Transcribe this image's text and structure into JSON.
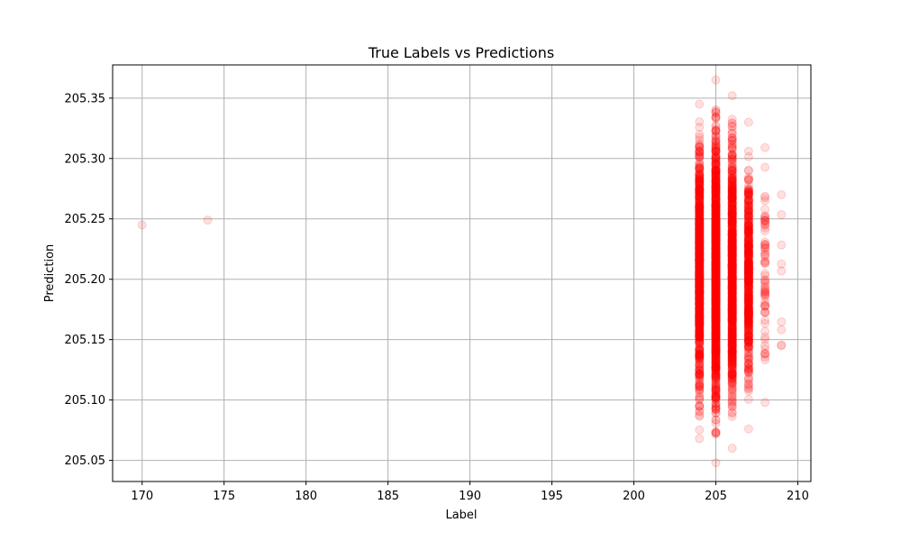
{
  "chart_data": {
    "type": "scatter",
    "title": "True Labels vs Predictions",
    "xlabel": "Label",
    "ylabel": "Prediction",
    "xlim": [
      168.2,
      210.8
    ],
    "ylim": [
      205.0325,
      205.3775
    ],
    "xticks": [
      170,
      175,
      180,
      185,
      190,
      195,
      200,
      205,
      210
    ],
    "yticks": [
      205.05,
      205.1,
      205.15,
      205.2,
      205.25,
      205.3,
      205.35
    ],
    "grid": true,
    "marker_color": "#ff0000",
    "marker_alpha": 0.12,
    "series": [
      {
        "outliers": [
          {
            "x": 170,
            "y": 205.245
          },
          {
            "x": 174,
            "y": 205.249
          }
        ],
        "columns": [
          {
            "x": 204,
            "y_min": 205.068,
            "y_max": 205.345,
            "count": 900
          },
          {
            "x": 205,
            "y_min": 205.048,
            "y_max": 205.365,
            "count": 1100
          },
          {
            "x": 206,
            "y_min": 205.06,
            "y_max": 205.352,
            "count": 900
          },
          {
            "x": 207,
            "y_min": 205.076,
            "y_max": 205.33,
            "count": 500
          },
          {
            "x": 208,
            "y_min": 205.098,
            "y_max": 205.309,
            "count": 70
          },
          {
            "x": 209,
            "y_min": 205.145,
            "y_max": 205.27,
            "count": 9
          }
        ]
      }
    ]
  }
}
